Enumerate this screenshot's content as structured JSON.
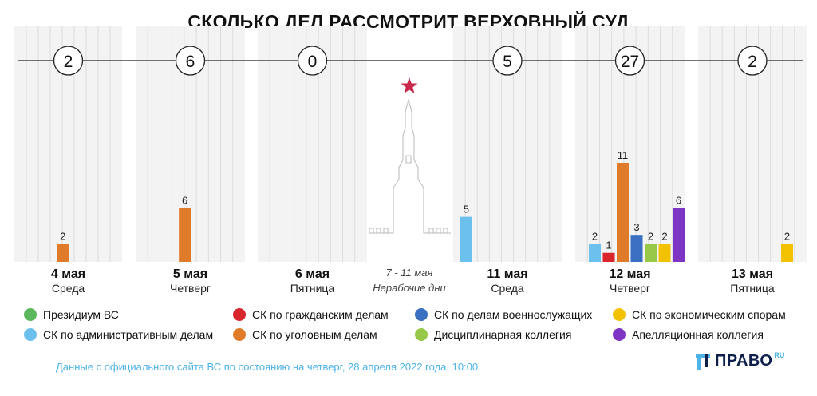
{
  "title": "СКОЛЬКО ДЕЛ РАССМОТРИТ ВЕРХОВНЫЙ СУД",
  "chart_data": {
    "type": "bar",
    "categories": [
      "4 мая",
      "5 мая",
      "6 мая",
      "11 мая",
      "12 мая",
      "13 мая"
    ],
    "weekdays": [
      "Среда",
      "Четверг",
      "Пятница",
      "Среда",
      "Четверг",
      "Пятница"
    ],
    "totals": [
      "2",
      "6",
      "0",
      "5",
      "27",
      "2"
    ],
    "bars": [
      [
        {
          "series": "СК по уголовным делам",
          "value": 2
        }
      ],
      [
        {
          "series": "СК по уголовным делам",
          "value": 6
        }
      ],
      [],
      [
        {
          "series": "СК по административным делам",
          "value": 5
        }
      ],
      [
        {
          "series": "СК по административным делам",
          "value": 2
        },
        {
          "series": "СК по гражданским делам",
          "value": 1
        },
        {
          "series": "СК по уголовным делам",
          "value": 11
        },
        {
          "series": "СК по делам военнослужащих",
          "value": 3
        },
        {
          "series": "Дисциплинарная коллегия",
          "value": 2
        },
        {
          "series": "СК по экономическим спорам",
          "value": 2
        },
        {
          "series": "Апелляционная коллегия",
          "value": 6
        }
      ],
      [
        {
          "series": "СК по экономическим спорам",
          "value": 2
        }
      ]
    ],
    "break_label": "7 - 11 мая",
    "break_sublabel": "Нерабочие дни",
    "ylim": [
      0,
      11
    ]
  },
  "legend": [
    {
      "name": "Президиум ВС",
      "color": "#5cb85c"
    },
    {
      "name": "СК по гражданским делам",
      "color": "#d9262c"
    },
    {
      "name": "СК по делам военнослужащих",
      "color": "#3a6fc1"
    },
    {
      "name": "СК по экономическим спорам",
      "color": "#f2c200"
    },
    {
      "name": "СК по административным делам",
      "color": "#6cc0ee"
    },
    {
      "name": "СК по уголовным делам",
      "color": "#e07b2a"
    },
    {
      "name": "Дисциплинарная коллегия",
      "color": "#98c847"
    },
    {
      "name": "Апелляционная коллегия",
      "color": "#7f35c4"
    }
  ],
  "source": "Данные с официального сайта ВС по состоянию на четверг, 28 апреля 2022 года, 10:00",
  "logo": {
    "text": "ПРАВО",
    "sup": "RU"
  }
}
